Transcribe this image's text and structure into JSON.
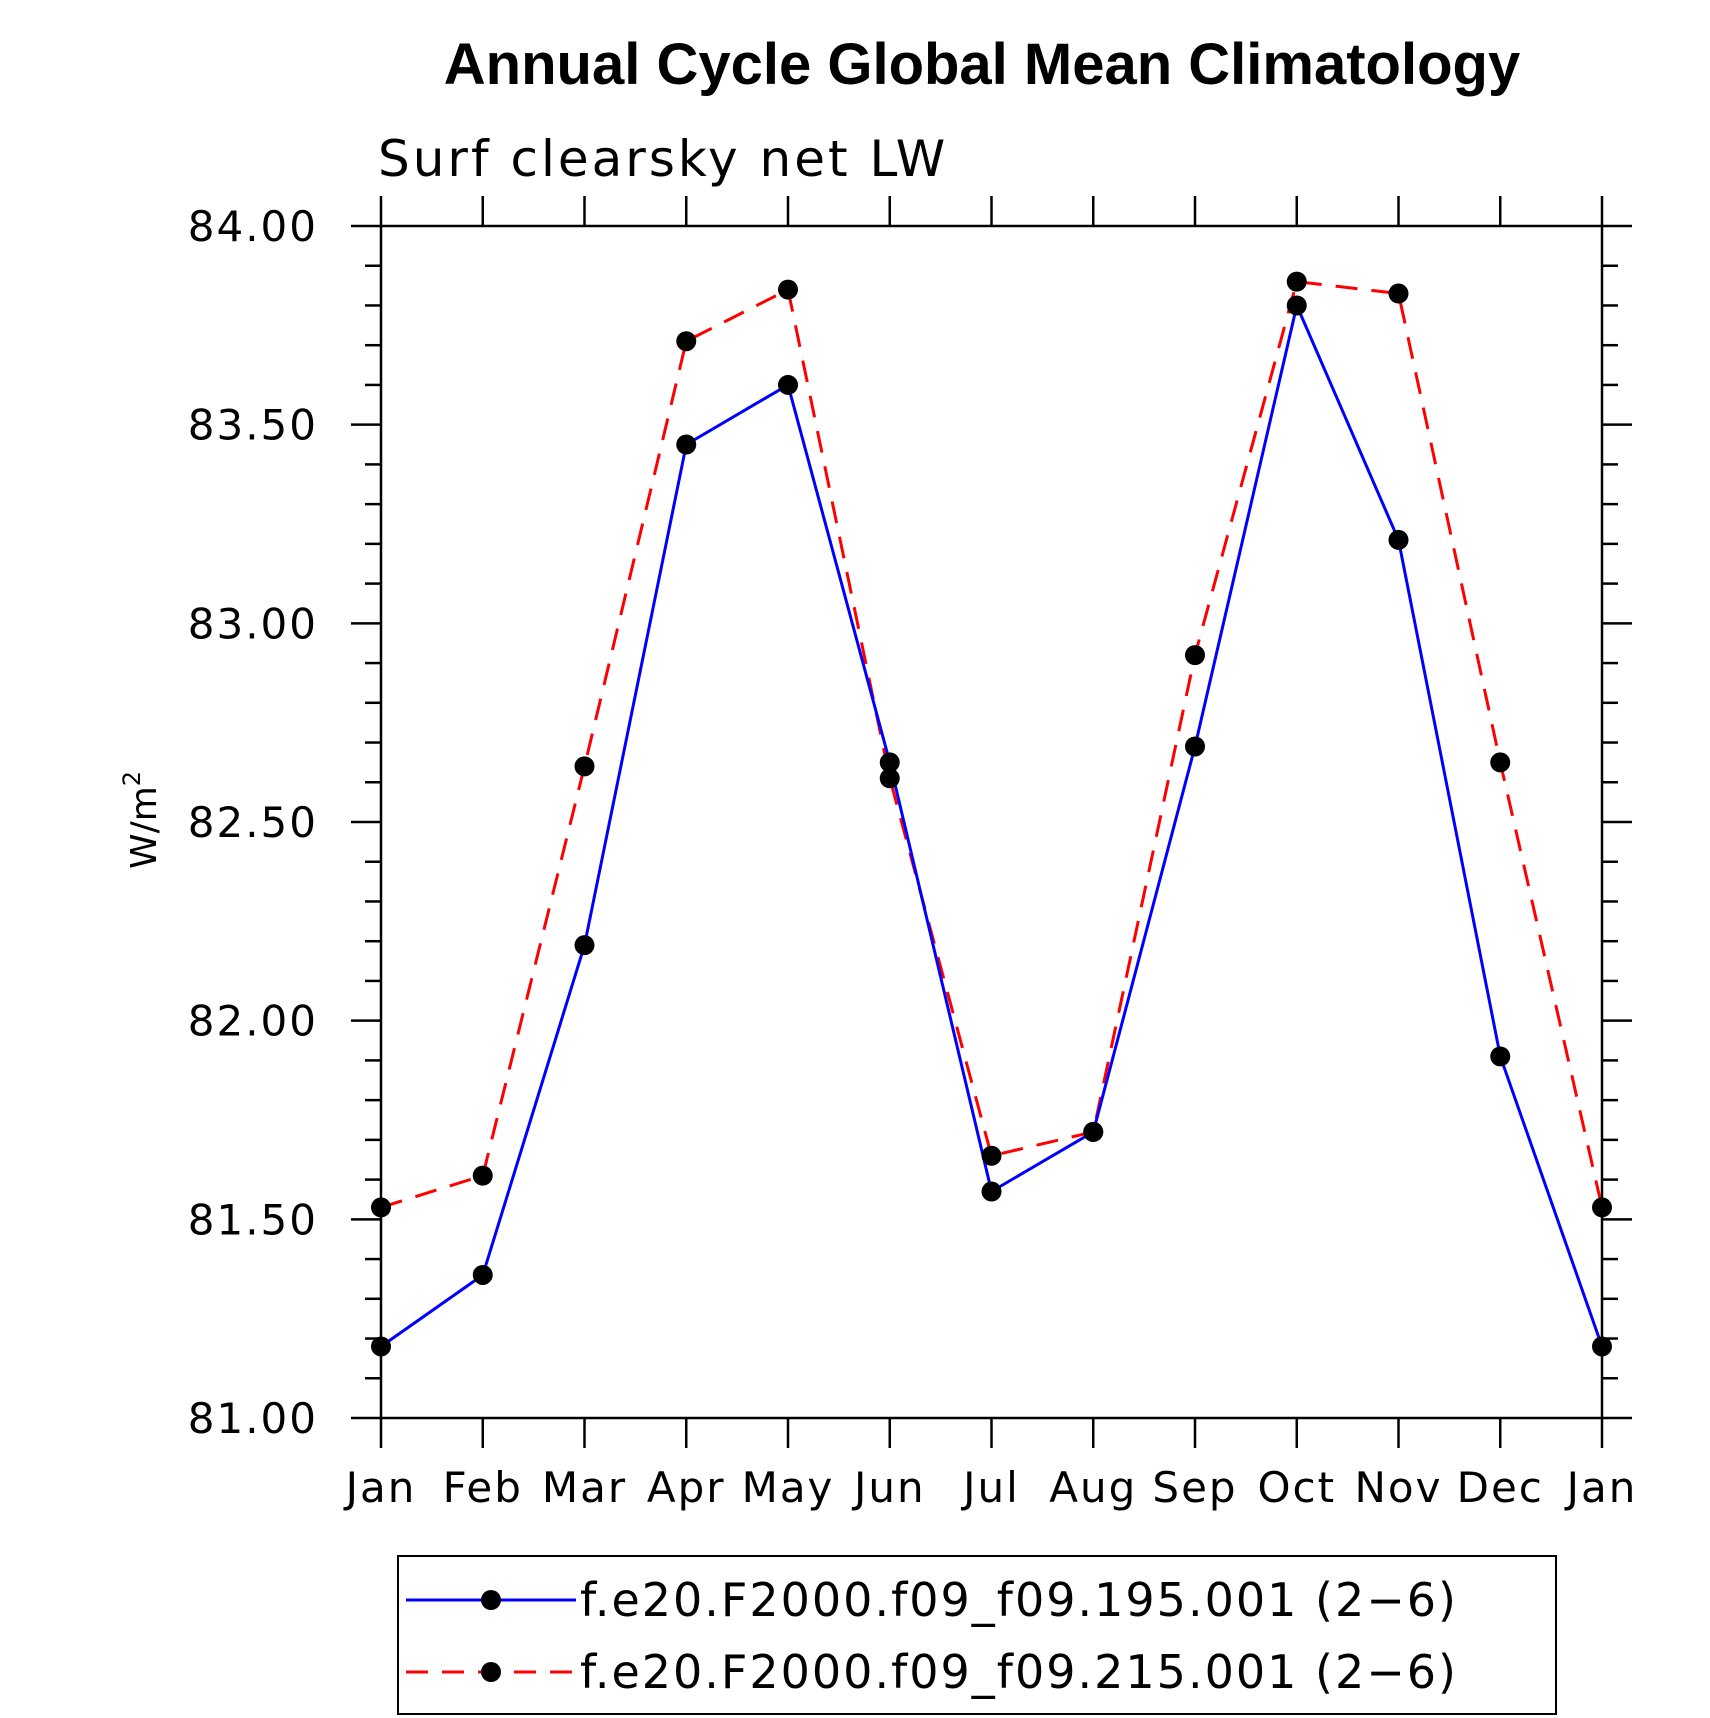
{
  "chart_data": {
    "type": "line",
    "title": "Annual Cycle Global Mean Climatology",
    "subtitle": "Surf clearsky net LW",
    "ylabel": "W/m",
    "ylabel_superscript": "2",
    "xlabel": "",
    "categories": [
      "Jan",
      "Feb",
      "Mar",
      "Apr",
      "May",
      "Jun",
      "Jul",
      "Aug",
      "Sep",
      "Oct",
      "Nov",
      "Dec",
      "Jan"
    ],
    "ylim": [
      81.0,
      84.0
    ],
    "yticks": [
      "81.00",
      "81.50",
      "82.00",
      "82.50",
      "83.00",
      "83.50",
      "84.00"
    ],
    "yminor_step": 0.1,
    "grid": false,
    "legend_position": "bottom",
    "series": [
      {
        "name": "f.e20.F2000.f09_f09.195.001 (2−6)",
        "color": "#0000ff",
        "dash": "solid",
        "values": [
          81.18,
          81.36,
          82.19,
          83.45,
          83.6,
          82.65,
          81.57,
          81.72,
          82.69,
          83.8,
          83.21,
          81.91,
          81.18
        ]
      },
      {
        "name": "f.e20.F2000.f09_f09.215.001 (2−6)",
        "color": "#ff0000",
        "dash": "dashed",
        "values": [
          81.53,
          81.61,
          82.64,
          83.71,
          83.84,
          82.61,
          81.66,
          81.72,
          82.92,
          83.86,
          83.83,
          82.65,
          81.53
        ]
      }
    ]
  }
}
